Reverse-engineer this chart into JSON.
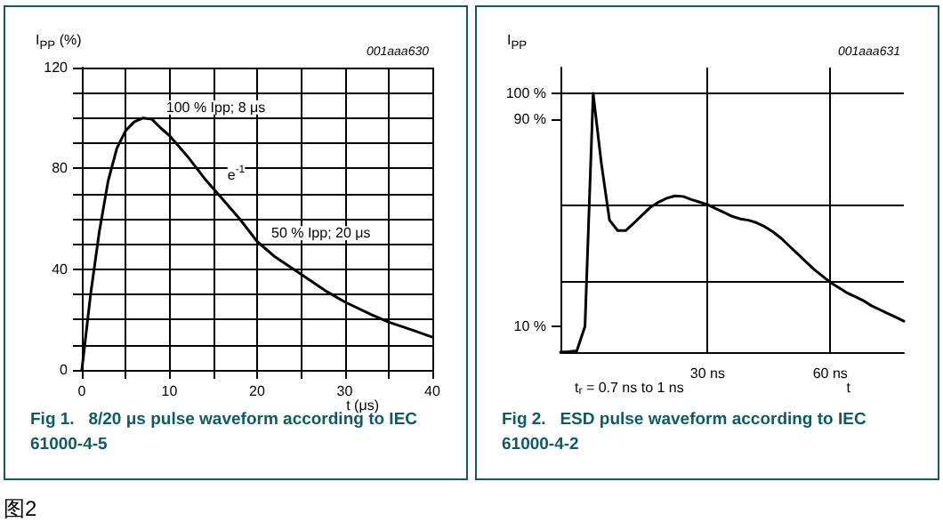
{
  "chart_data": [
    {
      "type": "line",
      "title": "Fig 1.   8/20 μs pulse waveform according to IEC 61000-4-5",
      "xlabel": "t (μs)",
      "ylabel": "I$_{PP}$ (%)",
      "x": [
        0,
        1,
        2,
        3,
        4,
        5,
        6,
        7,
        8,
        9,
        10,
        12,
        14,
        16,
        18,
        20,
        22,
        25,
        28,
        30,
        33,
        35,
        38,
        40
      ],
      "series": [
        {
          "color": "#000000",
          "values": [
            0,
            30,
            55,
            75,
            88,
            95,
            98.5,
            100,
            99.5,
            96,
            93,
            85,
            76,
            68,
            60,
            51,
            45,
            38,
            31,
            27,
            22,
            19,
            15.5,
            13
          ]
        }
      ],
      "xlim": [
        0,
        40
      ],
      "xticks": [
        0,
        {
          "value": 5,
          "label": null
        },
        10,
        {
          "value": 15,
          "label": null
        },
        20,
        {
          "value": 25,
          "label": null
        },
        30,
        {
          "value": 35,
          "label": null
        },
        40
      ],
      "ylim": [
        0,
        120
      ],
      "yticks": [
        0,
        {
          "value": 10,
          "label": null
        },
        {
          "value": 20,
          "label": null
        },
        {
          "value": 30,
          "label": null
        },
        40,
        {
          "value": 50,
          "label": null
        },
        {
          "value": 60,
          "label": null
        },
        {
          "value": 70,
          "label": null
        },
        80,
        {
          "value": 90,
          "label": null
        },
        {
          "value": 100,
          "label": null
        },
        {
          "value": 110,
          "label": null
        },
        120
      ],
      "grid": true,
      "marker": "none",
      "line_style": "solid",
      "annotations": [
        "001aaa630",
        {
          "text": "100 % Ipp; 8 μs",
          "x": 8,
          "y": 100
        },
        {
          "text": "e$^{-1}$",
          "x": 15,
          "y": 72
        },
        {
          "text": "50 % Ipp; 20 μs",
          "x": 20,
          "y": 50
        },
        "图2"
      ]
    },
    {
      "type": "line",
      "title": "Fig 2.   ESD pulse waveform according to IEC 61000-4-2",
      "xlabel": "t",
      "ylabel": "I$_{PP}$",
      "categories": [
        null,
        null,
        null,
        null,
        null,
        null,
        null,
        null,
        null,
        null,
        null,
        null,
        null,
        null,
        null,
        null,
        null,
        null,
        "30 ns",
        null,
        null,
        null,
        null,
        null,
        null,
        null,
        null,
        null,
        null,
        null,
        null,
        null,
        null,
        "60 ns",
        null,
        null,
        null,
        null,
        null,
        null,
        null,
        null,
        null
      ],
      "series": [
        {
          "color": "#000000",
          "values": [
            0,
            0.2,
            0.5,
            10,
            100,
            73,
            51,
            47,
            47,
            50,
            53,
            56,
            58,
            59.5,
            60.4,
            60.2,
            59,
            58,
            57,
            55.5,
            54,
            52.5,
            51.5,
            51,
            50,
            48.5,
            46.5,
            44,
            41,
            38,
            35,
            32,
            29.5,
            27,
            25,
            23,
            21.5,
            20,
            18,
            16.5,
            15,
            13.5,
            12
          ]
        }
      ],
      "ylim": [
        0,
        110
      ],
      "yticks": [
        {
          "value": 10,
          "label": "10 %"
        },
        {
          "value": 90,
          "label": "90 %"
        },
        {
          "value": 100,
          "label": "100 %"
        }
      ],
      "grid": false,
      "marker": "none",
      "line_style": "solid",
      "ref_lines": [
        {
          "axis": "y",
          "value": 100
        },
        {
          "axis": "y",
          "value": 57
        },
        {
          "axis": "y",
          "value": 27
        },
        {
          "axis": "x",
          "value": "30 ns"
        },
        {
          "axis": "x",
          "value": "60 ns"
        }
      ],
      "annotations": [
        "001aaa631",
        "t$_{r}$ = 0.7 ns to 1 ns"
      ]
    }
  ]
}
